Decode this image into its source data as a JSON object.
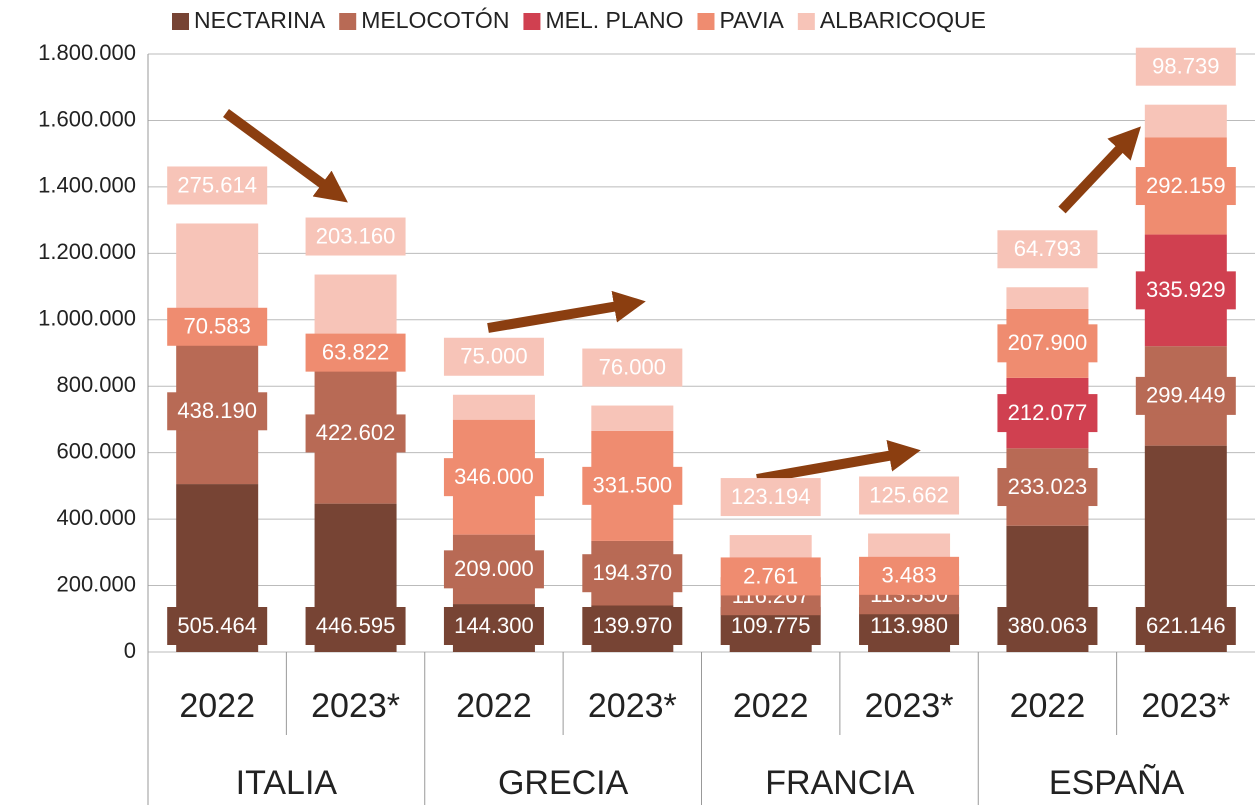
{
  "chart_data": {
    "type": "stacked_bar",
    "categories": [
      "2022",
      "2023*",
      "2022",
      "2023*",
      "2022",
      "2023*",
      "2022",
      "2023*"
    ],
    "groups": [
      "ITALIA",
      "GRECIA",
      "FRANCIA",
      "ESPAÑA"
    ],
    "series": [
      {
        "name": "NECTARINA",
        "color": "#774434",
        "values": [
          505464,
          446595,
          144300,
          139970,
          109775,
          113980,
          380063,
          621146
        ],
        "value_labels": [
          "505.464",
          "446.595",
          "144.300",
          "139.970",
          "109.775",
          "113.980",
          "380.063",
          "621.146"
        ]
      },
      {
        "name": "MELOCOTÓN",
        "color": "#b86a55",
        "values": [
          438190,
          422602,
          209000,
          194370,
          116267,
          113550,
          233023,
          299449
        ],
        "value_labels": [
          "438.190",
          "422.602",
          "209.000",
          "194.370",
          "116.267",
          "113.550",
          "233.023",
          "299.449"
        ]
      },
      {
        "name": "MEL. PLANO",
        "color": "#d04050",
        "values": [
          null,
          null,
          null,
          null,
          null,
          null,
          212077,
          335929
        ],
        "value_labels": [
          null,
          null,
          null,
          null,
          null,
          null,
          "212.077",
          "335.929"
        ]
      },
      {
        "name": "PAVIA",
        "color": "#ef8c70",
        "values": [
          70583,
          63822,
          346000,
          331500,
          2761,
          3483,
          207900,
          292159
        ],
        "value_labels": [
          "70.583",
          "63.822",
          "346.000",
          "331.500",
          "2.761",
          "3.483",
          "207.900",
          "292.159"
        ]
      },
      {
        "name": "ALBARICOQUE",
        "color": "#f7c4b8",
        "values": [
          275614,
          203160,
          75000,
          76000,
          123194,
          125662,
          64793,
          98739
        ],
        "value_labels": [
          "275.614",
          "203.160",
          "75.000",
          "76.000",
          "123.194",
          "125.662",
          "64.793",
          "98.739"
        ]
      }
    ],
    "ylim": [
      0,
      1800000
    ],
    "yticks": [
      0,
      {
        "value": 200000,
        "label": "200.000"
      },
      {
        "value": 400000,
        "label": "400.000"
      },
      {
        "value": 600000,
        "label": "600.000"
      },
      {
        "value": 800000,
        "label": "800.000"
      },
      {
        "value": 1000000,
        "label": "1.000.000"
      },
      {
        "value": 1200000,
        "label": "1.200.000"
      },
      {
        "value": 1400000,
        "label": "1.400.000"
      },
      {
        "value": 1600000,
        "label": "1.600.000"
      },
      {
        "value": 1800000,
        "label": "1.800.000"
      }
    ],
    "grid": true
  }
}
